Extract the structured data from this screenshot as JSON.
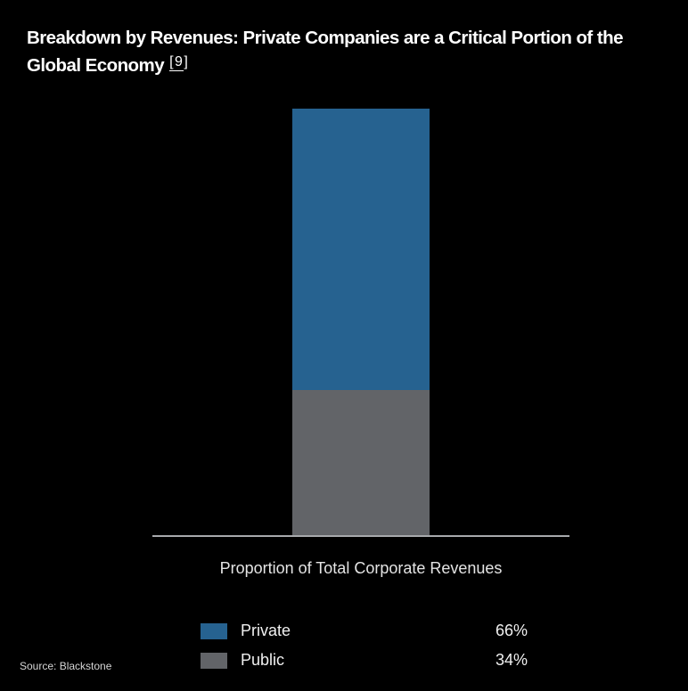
{
  "title": {
    "line1": "Breakdown by Revenues: Private Companies are a Critical Portion of the",
    "line2": "Global Economy",
    "reference_open": "[9",
    "reference_close": "]"
  },
  "chart_data": {
    "type": "bar",
    "stacked": true,
    "title": "Breakdown by Revenues: Private Companies are a Critical Portion of the Global Economy [9]",
    "categories": [
      "Proportion of Total Corporate Revenues"
    ],
    "series": [
      {
        "name": "Private",
        "value": 66,
        "color": "#266290"
      },
      {
        "name": "Public",
        "value": 34,
        "color": "#626468"
      }
    ],
    "unit": "%",
    "ylim": [
      0,
      100
    ],
    "grid": false,
    "xlabel": "Proportion of Total Corporate Revenues",
    "ylabel": "",
    "legend_position": "bottom"
  },
  "legend": {
    "items": [
      {
        "label": "Private",
        "value": "66%",
        "color": "#266290"
      },
      {
        "label": "Public",
        "value": "34%",
        "color": "#626468"
      }
    ]
  },
  "axis": {
    "line_color": "#a7a9ac"
  },
  "source": "Source: Blackstone",
  "colors": {
    "background": "#000000",
    "private": "#266290",
    "public": "#626468",
    "title_text": "#ffffff"
  }
}
